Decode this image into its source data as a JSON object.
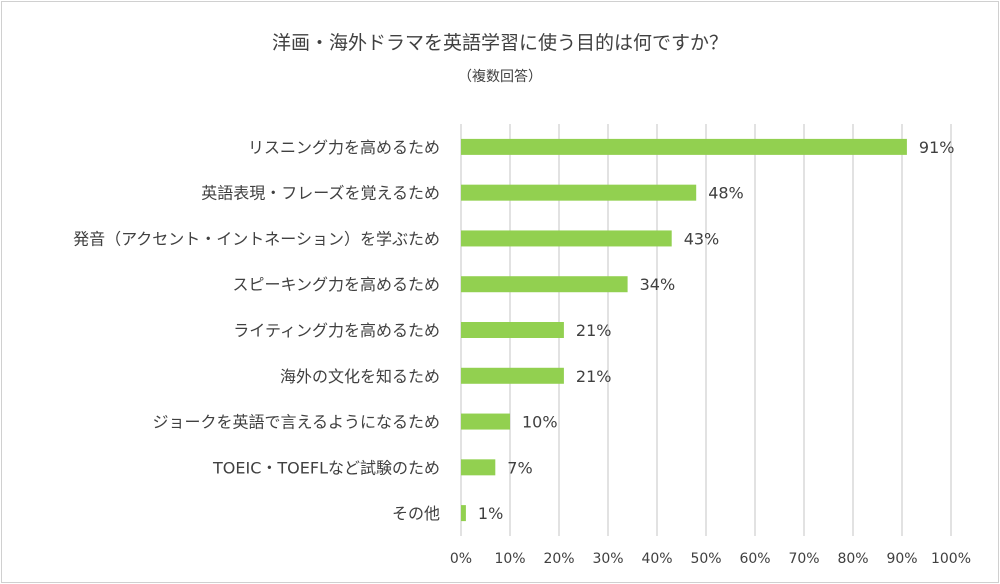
{
  "chart_data": {
    "type": "bar",
    "orientation": "horizontal",
    "title": "洋画・海外ドラマを英語学習に使う目的は何ですか？",
    "subtitle": "（複数回答）",
    "categories": [
      "リスニング力を高めるため",
      "英語表現・フレーズを覚えるため",
      "発音（アクセント・イントネーション）を学ぶため",
      "スピーキング力を高めるため",
      "ライティング力を高めるため",
      "海外の文化を知るため",
      "ジョークを英語で言えるようになるため",
      "TOEIC・TOEFLなど試験のため",
      "その他"
    ],
    "values": [
      91,
      48,
      43,
      34,
      21,
      21,
      10,
      7,
      1
    ],
    "data_labels": [
      "91%",
      "48%",
      "43%",
      "34%",
      "21%",
      "21%",
      "10%",
      "7%",
      "1%"
    ],
    "xlim": [
      0,
      100
    ],
    "ticks": [
      "0%",
      "10%",
      "20%",
      "30%",
      "40%",
      "50%",
      "60%",
      "70%",
      "80%",
      "90%",
      "100%"
    ],
    "grid": true,
    "legend": "none",
    "bar_color": "#92d050",
    "grid_color": "#d9d9d9"
  }
}
